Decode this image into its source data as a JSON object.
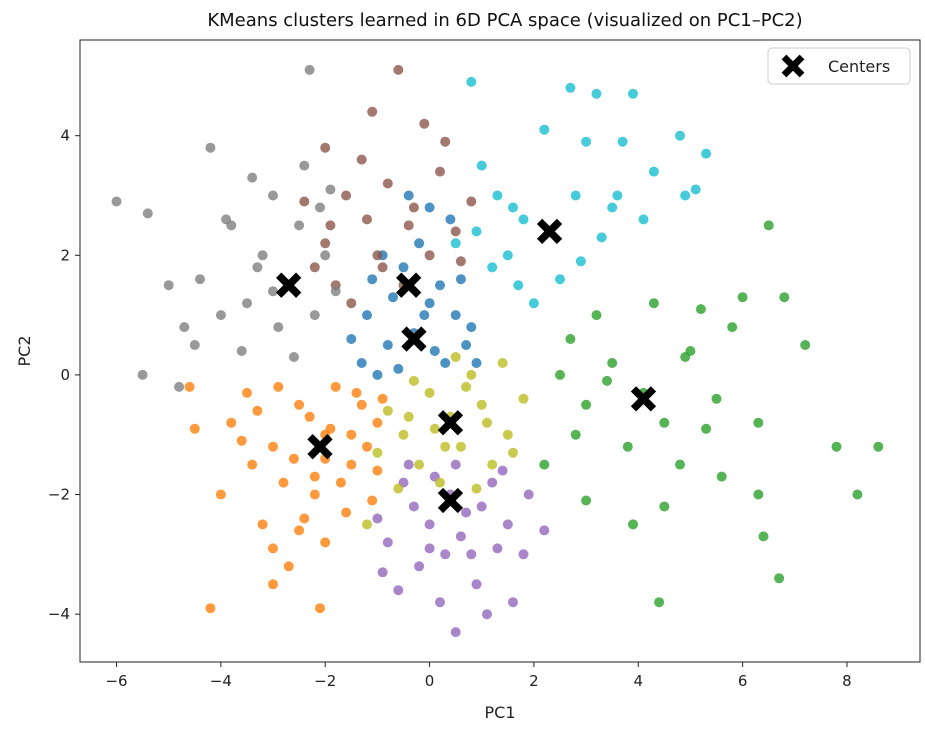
{
  "chart_data": {
    "type": "scatter",
    "title": "KMeans clusters learned in 6D PCA space (visualized on PC1–PC2)",
    "xlabel": "PC1",
    "ylabel": "PC2",
    "xlim": [
      -6.7,
      9.4
    ],
    "ylim": [
      -4.8,
      5.6
    ],
    "xticks": [
      -6,
      -4,
      -2,
      0,
      2,
      4,
      6,
      8
    ],
    "yticks": [
      -4,
      -2,
      0,
      2,
      4
    ],
    "grid": false,
    "legend": {
      "placement": "top-right",
      "entries": [
        "Centers"
      ]
    },
    "series": [
      {
        "color": "#ff7f0e",
        "points": [
          [
            -2.0,
            -1.0
          ],
          [
            -2.5,
            -0.5
          ],
          [
            -3.0,
            -1.2
          ],
          [
            -1.5,
            -1.5
          ],
          [
            -2.2,
            -2.0
          ],
          [
            -3.5,
            -0.3
          ],
          [
            -1.0,
            -0.8
          ],
          [
            -2.8,
            -1.8
          ],
          [
            -1.8,
            -0.2
          ],
          [
            -3.2,
            -2.5
          ],
          [
            -2.0,
            -2.8
          ],
          [
            -1.2,
            -1.2
          ],
          [
            -3.8,
            -0.8
          ],
          [
            -2.6,
            -1.4
          ],
          [
            -1.6,
            -2.3
          ],
          [
            -4.0,
            -2.0
          ],
          [
            -2.3,
            -0.7
          ],
          [
            -3.0,
            -2.9
          ],
          [
            -1.3,
            -0.5
          ],
          [
            -2.9,
            -0.2
          ],
          [
            -4.2,
            -3.9
          ],
          [
            -2.1,
            -3.9
          ],
          [
            -1.7,
            -1.8
          ],
          [
            -2.4,
            -2.4
          ],
          [
            -3.4,
            -1.5
          ],
          [
            -1.0,
            -1.6
          ],
          [
            -2.7,
            -3.2
          ],
          [
            -4.6,
            -0.2
          ],
          [
            -1.4,
            -0.3
          ],
          [
            -3.6,
            -1.1
          ],
          [
            -2.0,
            -1.4
          ],
          [
            -1.1,
            -2.1
          ],
          [
            -3.3,
            -0.6
          ],
          [
            -2.5,
            -2.6
          ],
          [
            -1.9,
            -0.9
          ],
          [
            -4.5,
            -0.9
          ],
          [
            -3.0,
            -3.5
          ],
          [
            -1.5,
            -1.0
          ],
          [
            -2.2,
            -1.7
          ],
          [
            -0.9,
            -0.4
          ]
        ]
      },
      {
        "color": "#9467bd",
        "points": [
          [
            0.4,
            -2.0
          ],
          [
            0.0,
            -2.5
          ],
          [
            1.0,
            -2.2
          ],
          [
            -0.5,
            -1.8
          ],
          [
            0.8,
            -3.0
          ],
          [
            1.5,
            -2.5
          ],
          [
            -0.2,
            -3.2
          ],
          [
            0.5,
            -1.5
          ],
          [
            1.2,
            -1.8
          ],
          [
            0.2,
            -3.8
          ],
          [
            0.5,
            -4.3
          ],
          [
            -0.8,
            -2.8
          ],
          [
            1.8,
            -3.0
          ],
          [
            0.9,
            -3.5
          ],
          [
            -0.3,
            -2.2
          ],
          [
            0.6,
            -2.7
          ],
          [
            1.4,
            -1.6
          ],
          [
            -0.6,
            -3.6
          ],
          [
            0.1,
            -1.7
          ],
          [
            1.1,
            -4.0
          ],
          [
            2.2,
            -2.6
          ],
          [
            -1.0,
            -2.4
          ],
          [
            0.3,
            -3.0
          ],
          [
            1.6,
            -3.8
          ],
          [
            -0.4,
            -1.5
          ],
          [
            0.7,
            -2.3
          ],
          [
            1.9,
            -2.0
          ],
          [
            -0.9,
            -3.3
          ],
          [
            0.0,
            -2.9
          ],
          [
            1.3,
            -2.9
          ]
        ]
      },
      {
        "color": "#bcbd22",
        "points": [
          [
            0.4,
            -0.7
          ],
          [
            0.0,
            -0.3
          ],
          [
            -0.5,
            -1.0
          ],
          [
            1.0,
            -0.5
          ],
          [
            0.6,
            -1.2
          ],
          [
            -0.2,
            -1.5
          ],
          [
            0.8,
            0.0
          ],
          [
            1.5,
            -1.0
          ],
          [
            -0.8,
            -0.6
          ],
          [
            0.2,
            -1.8
          ],
          [
            1.2,
            -1.5
          ],
          [
            -1.0,
            -1.3
          ],
          [
            0.5,
            0.3
          ],
          [
            1.8,
            -0.4
          ],
          [
            -0.3,
            -0.1
          ],
          [
            0.9,
            -1.9
          ],
          [
            1.4,
            0.2
          ],
          [
            -0.6,
            -1.9
          ],
          [
            0.1,
            -0.9
          ],
          [
            1.1,
            -0.8
          ],
          [
            -1.2,
            -2.5
          ],
          [
            0.7,
            -0.2
          ],
          [
            1.6,
            -1.3
          ],
          [
            0.3,
            -1.2
          ],
          [
            -0.4,
            -0.7
          ]
        ]
      },
      {
        "color": "#1f77b4",
        "points": [
          [
            -0.3,
            0.7
          ],
          [
            0.0,
            1.2
          ],
          [
            -0.8,
            0.5
          ],
          [
            0.5,
            1.0
          ],
          [
            -1.2,
            1.0
          ],
          [
            -0.5,
            1.8
          ],
          [
            0.3,
            0.2
          ],
          [
            -1.0,
            0.0
          ],
          [
            0.8,
            0.8
          ],
          [
            -0.2,
            2.2
          ],
          [
            -1.5,
            0.6
          ],
          [
            0.6,
            1.6
          ],
          [
            -0.7,
            1.3
          ],
          [
            0.1,
            0.4
          ],
          [
            -1.1,
            1.6
          ],
          [
            0.4,
            2.6
          ],
          [
            -0.4,
            3.0
          ],
          [
            0.9,
            0.2
          ],
          [
            -0.9,
            2.0
          ],
          [
            0.2,
            1.5
          ],
          [
            -1.3,
            0.2
          ],
          [
            0.7,
            0.5
          ],
          [
            -0.6,
            0.1
          ],
          [
            0.0,
            2.8
          ],
          [
            -0.1,
            1.0
          ]
        ]
      },
      {
        "color": "#8c564b",
        "points": [
          [
            -0.5,
            1.5
          ],
          [
            -1.0,
            2.0
          ],
          [
            0.0,
            2.0
          ],
          [
            -1.5,
            1.2
          ],
          [
            -0.3,
            2.8
          ],
          [
            -1.2,
            2.6
          ],
          [
            0.5,
            2.4
          ],
          [
            -2.0,
            2.2
          ],
          [
            -0.8,
            3.2
          ],
          [
            -1.6,
            3.0
          ],
          [
            0.2,
            3.4
          ],
          [
            -2.2,
            1.8
          ],
          [
            -0.1,
            4.2
          ],
          [
            -1.1,
            4.4
          ],
          [
            -0.6,
            5.1
          ],
          [
            -2.0,
            3.8
          ],
          [
            0.6,
            1.9
          ],
          [
            -1.8,
            1.5
          ],
          [
            -0.4,
            2.5
          ],
          [
            -1.3,
            3.6
          ],
          [
            0.3,
            3.9
          ],
          [
            -2.4,
            2.9
          ],
          [
            -0.9,
            1.8
          ],
          [
            0.8,
            2.9
          ],
          [
            -1.9,
            2.5
          ]
        ]
      },
      {
        "color": "#7f7f7f",
        "points": [
          [
            -2.7,
            1.5
          ],
          [
            -3.2,
            2.0
          ],
          [
            -2.2,
            1.0
          ],
          [
            -3.5,
            1.2
          ],
          [
            -2.5,
            2.5
          ],
          [
            -4.0,
            1.0
          ],
          [
            -2.0,
            2.0
          ],
          [
            -3.0,
            3.0
          ],
          [
            -4.5,
            0.5
          ],
          [
            -2.4,
            3.5
          ],
          [
            -3.8,
            2.5
          ],
          [
            -5.0,
            1.5
          ],
          [
            -6.0,
            2.9
          ],
          [
            -5.4,
            2.7
          ],
          [
            -4.2,
            3.8
          ],
          [
            -5.5,
            0.0
          ],
          [
            -2.3,
            5.1
          ],
          [
            -1.8,
            1.4
          ],
          [
            -3.6,
            0.4
          ],
          [
            -2.9,
            0.8
          ],
          [
            -4.7,
            0.8
          ],
          [
            -3.3,
            1.8
          ],
          [
            -2.1,
            2.8
          ],
          [
            -4.4,
            1.6
          ],
          [
            -3.9,
            2.6
          ],
          [
            -2.6,
            0.3
          ],
          [
            -3.0,
            1.4
          ],
          [
            -4.8,
            -0.2
          ],
          [
            -1.9,
            3.1
          ],
          [
            -3.4,
            3.3
          ]
        ]
      },
      {
        "color": "#2ca02c",
        "points": [
          [
            4.1,
            -0.3
          ],
          [
            3.5,
            0.2
          ],
          [
            4.5,
            -0.8
          ],
          [
            3.0,
            -0.5
          ],
          [
            5.0,
            0.4
          ],
          [
            3.8,
            -1.2
          ],
          [
            4.8,
            -1.5
          ],
          [
            2.5,
            0.0
          ],
          [
            5.5,
            -0.4
          ],
          [
            3.2,
            1.0
          ],
          [
            4.3,
            1.2
          ],
          [
            6.0,
            1.3
          ],
          [
            5.2,
            1.1
          ],
          [
            2.8,
            -1.0
          ],
          [
            6.5,
            2.5
          ],
          [
            6.8,
            1.3
          ],
          [
            7.2,
            0.5
          ],
          [
            6.3,
            -0.8
          ],
          [
            5.6,
            -1.7
          ],
          [
            4.5,
            -2.2
          ],
          [
            3.9,
            -2.5
          ],
          [
            6.3,
            -2.0
          ],
          [
            6.4,
            -2.7
          ],
          [
            6.7,
            -3.4
          ],
          [
            4.4,
            -3.8
          ],
          [
            7.8,
            -1.2
          ],
          [
            8.2,
            -2.0
          ],
          [
            8.6,
            -1.2
          ],
          [
            3.0,
            -2.1
          ],
          [
            5.8,
            0.8
          ],
          [
            2.2,
            -1.5
          ],
          [
            3.4,
            -0.1
          ],
          [
            4.9,
            0.3
          ],
          [
            5.3,
            -0.9
          ],
          [
            2.7,
            0.6
          ]
        ]
      },
      {
        "color": "#17becf",
        "points": [
          [
            2.3,
            2.4
          ],
          [
            1.5,
            2.0
          ],
          [
            2.8,
            3.0
          ],
          [
            1.0,
            3.5
          ],
          [
            3.5,
            2.8
          ],
          [
            1.8,
            2.6
          ],
          [
            3.0,
            3.9
          ],
          [
            0.8,
            4.9
          ],
          [
            2.7,
            4.8
          ],
          [
            3.2,
            4.7
          ],
          [
            3.9,
            4.7
          ],
          [
            4.8,
            4.0
          ],
          [
            5.3,
            3.7
          ],
          [
            4.3,
            3.4
          ],
          [
            4.9,
            3.0
          ],
          [
            5.1,
            3.1
          ],
          [
            2.2,
            4.1
          ],
          [
            3.7,
            3.9
          ],
          [
            1.2,
            1.8
          ],
          [
            2.5,
            1.6
          ],
          [
            0.5,
            2.2
          ],
          [
            1.6,
            2.8
          ],
          [
            3.3,
            2.3
          ],
          [
            2.0,
            1.2
          ],
          [
            1.3,
            3.0
          ],
          [
            0.9,
            2.4
          ],
          [
            2.9,
            1.9
          ],
          [
            4.1,
            2.6
          ],
          [
            1.7,
            1.5
          ],
          [
            3.6,
            3.0
          ]
        ]
      }
    ],
    "centers": [
      [
        -2.7,
        1.5
      ],
      [
        -0.4,
        1.5
      ],
      [
        -0.3,
        0.6
      ],
      [
        2.3,
        2.4
      ],
      [
        4.1,
        -0.4
      ],
      [
        0.4,
        -0.8
      ],
      [
        -2.1,
        -1.2
      ],
      [
        0.4,
        -2.1
      ]
    ]
  }
}
